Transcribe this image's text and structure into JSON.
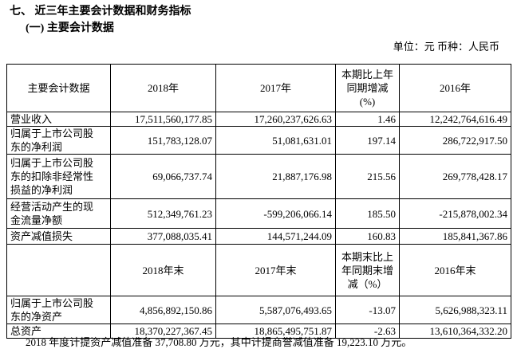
{
  "heading": {
    "section": "七、 近三年主要会计数据和财务指标",
    "subsection": "(一) 主要会计数据"
  },
  "unit": "单位：元  币种：人民币",
  "table": {
    "header": [
      [
        "主要会计数据"
      ],
      [
        "2018年"
      ],
      [
        "2017年"
      ],
      [
        "本期比上年",
        "同期增减",
        "(%)"
      ],
      [
        "2016年"
      ]
    ],
    "rows": [
      [
        [
          "营业收入"
        ],
        "17,511,560,177.85",
        "17,260,237,626.63",
        "1.46",
        "12,242,764,616.49"
      ],
      [
        [
          "归属于上市公司股",
          "东的净利润"
        ],
        "151,783,128.07",
        "51,081,631.01",
        "197.14",
        "286,722,917.50"
      ],
      [
        [
          "归属于上市公司股",
          "东的扣除非经常性",
          "损益的净利润"
        ],
        "69,066,737.74",
        "21,887,176.98",
        "215.56",
        "269,778,428.17"
      ],
      [
        [
          "经营活动产生的现",
          "金流量净额"
        ],
        "512,349,761.23",
        "-599,206,066.14",
        "185.50",
        "-215,878,002.34"
      ],
      [
        [
          "资产减值损失"
        ],
        "377,088,035.41",
        "144,571,244.09",
        "160.83",
        "185,841,367.86"
      ]
    ],
    "header2": [
      [],
      [
        "2018年末"
      ],
      [
        "2017年末"
      ],
      [
        "本期末比上",
        "年同期末增",
        "减（%）"
      ],
      [
        "2016年末"
      ]
    ],
    "rows2": [
      [
        [
          "归属于上市公司股",
          "东的净资产"
        ],
        "4,856,892,150.86",
        "5,587,076,493.65",
        "-13.07",
        "5,626,988,323.11"
      ],
      [
        [
          "总资产"
        ],
        "18,370,227,367.45",
        "18,865,495,751.87",
        "-2.63",
        "13,610,364,332.20"
      ]
    ]
  },
  "footnote": "2018 年度计提资产减值准备 37,708.80 万元，其中计提商誉减值准备 19,223.10 万元。"
}
